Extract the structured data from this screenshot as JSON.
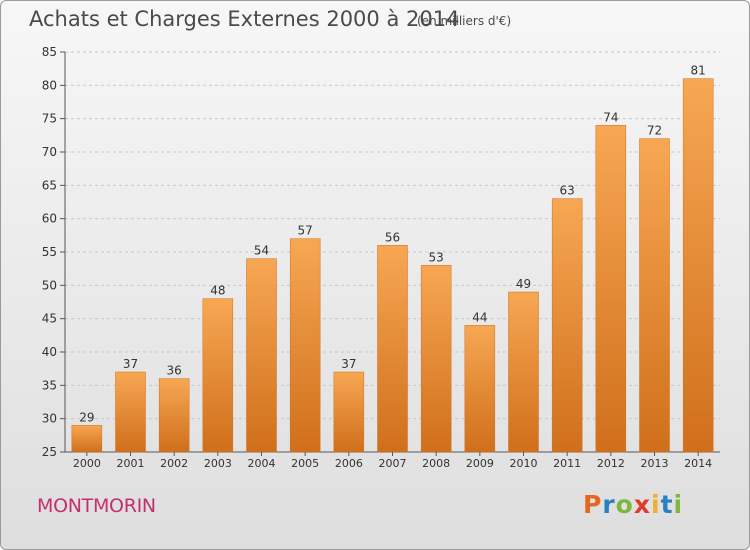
{
  "chart_data": {
    "type": "bar",
    "title": "Achats et Charges Externes 2000 à 2014",
    "subtitle": "(en milliers d'€)",
    "categories": [
      "2000",
      "2001",
      "2002",
      "2003",
      "2004",
      "2005",
      "2006",
      "2007",
      "2008",
      "2009",
      "2010",
      "2011",
      "2012",
      "2013",
      "2014"
    ],
    "values": [
      29,
      37,
      36,
      48,
      54,
      57,
      37,
      56,
      53,
      44,
      49,
      63,
      74,
      72,
      81
    ],
    "ylim": [
      25,
      85
    ],
    "yticks": [
      25,
      30,
      35,
      40,
      45,
      50,
      55,
      60,
      65,
      70,
      75,
      80,
      85
    ],
    "grid": "horizontal-dashed",
    "bar_color": "#e8872f",
    "bar_color_light": "#f7a753",
    "bar_color_dark": "#d06f1b"
  },
  "footer": {
    "town": "MONTMORIN",
    "logo": "Proxiti"
  },
  "colors": {
    "town": "#c4306e",
    "text": "#4a4a4a"
  }
}
